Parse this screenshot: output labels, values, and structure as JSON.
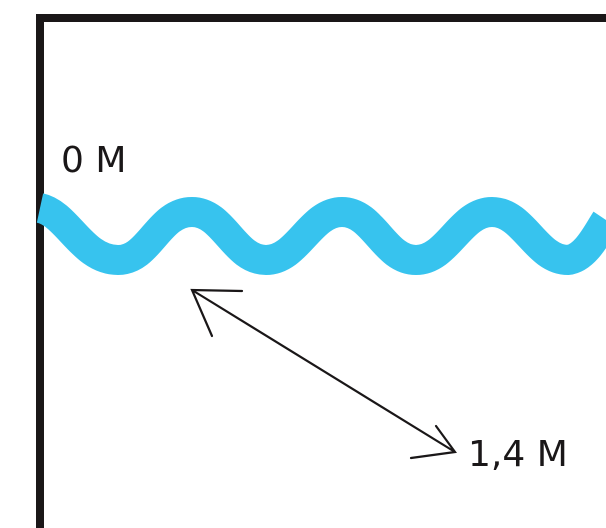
{
  "labels": {
    "surface": "0 M",
    "depth": "1,4 M"
  },
  "colors": {
    "water": "#37C3EE",
    "outline": "#1A1718"
  }
}
